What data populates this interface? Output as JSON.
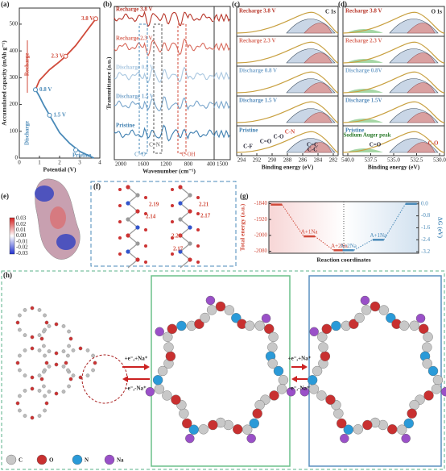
{
  "chart_data": [
    {
      "type": "line",
      "panel": "(a)",
      "xlabel": "Potential (V)",
      "ylabel": "Accumulated capacity (mAh g⁻¹)",
      "xlim": [
        0,
        4
      ],
      "xticks": [
        0,
        1,
        2,
        3,
        4
      ],
      "ylim": [
        0,
        560
      ],
      "yticks": [
        0,
        100,
        200,
        300,
        400,
        500
      ],
      "series": [
        {
          "name": "Discharge",
          "color": "#4a8ab8",
          "x": [
            3.7,
            3.0,
            2.5,
            2.0,
            1.5,
            1.2,
            1.0,
            0.85,
            0.8
          ],
          "values": [
            0,
            25,
            55,
            95,
            160,
            200,
            230,
            250,
            255
          ]
        },
        {
          "name": "Recharge",
          "color": "#d04a3a",
          "x": [
            0.8,
            1.0,
            1.5,
            2.0,
            2.3,
            2.8,
            3.3,
            3.8
          ],
          "values": [
            255,
            290,
            330,
            360,
            380,
            420,
            470,
            520
          ]
        }
      ],
      "points": [
        {
          "label": "3.8 V",
          "x": 3.8,
          "y": 520,
          "color": "#d04a3a"
        },
        {
          "label": "2.3 V",
          "x": 2.3,
          "y": 380,
          "color": "#d04a3a"
        },
        {
          "label": "0.8 V",
          "x": 0.8,
          "y": 255,
          "color": "#4a8ab8"
        },
        {
          "label": "1.5 V",
          "x": 1.5,
          "y": 160,
          "color": "#4a8ab8"
        },
        {
          "label": "Pristine",
          "x": 2.8,
          "y": 30,
          "color": "#4a8ab8"
        }
      ]
    },
    {
      "type": "level",
      "panel": "(g)",
      "xlabel": "Reaction coordinates",
      "ylabel": "Total energy (a.u.)",
      "y2label": "ΔG (eV)",
      "ylim": [
        -2090,
        -1830
      ],
      "yticks": [
        -1840,
        -1920,
        -2000,
        -2080
      ],
      "y2lim": [
        -3.3,
        0.15
      ],
      "y2ticks": [
        {
          "value": 0,
          "label": "0.0"
        },
        -0.8,
        -1.6,
        -2.4,
        -3.2
      ],
      "series": [
        {
          "color": "#d04a3a",
          "labels": [
            null,
            "A+1Na",
            "A+2Na"
          ],
          "values": [
            -1845,
            -2005,
            -2075
          ]
        },
        {
          "color": "#4a8ab8",
          "axis": "y2",
          "labels": [
            "A+2Na",
            "A+1Na",
            null
          ],
          "values": [
            -3.1,
            -2.4,
            0.0
          ]
        }
      ]
    }
  ],
  "panels": {
    "b": {
      "label": "(b)",
      "xlabel": "Wavenumber (cm⁻¹)",
      "ylabel": "Transmittance (a.u.)",
      "xticks": [
        "2000",
        "1600",
        "1200",
        "800",
        "400",
        "1500"
      ],
      "traces": [
        "Recharge 3.8 V",
        "Recharge 2.3 V",
        "Discharge 0.8 V",
        "Discharge 1.5 V",
        "Pristine"
      ],
      "bands": [
        "C=O",
        "C=N",
        "C-OH"
      ]
    },
    "c": {
      "label": "(c)",
      "title": "C 1s",
      "xlabel": "Binding energy (eV)",
      "xticks": [
        "294",
        "292",
        "290",
        "288",
        "286",
        "284",
        "282"
      ],
      "traces": [
        "Recharge 3.8 V",
        "Recharge 2.3 V",
        "Discharge 0.8 V",
        "Discharge 1.5 V",
        "Pristine"
      ],
      "peaks": [
        "C-F",
        "C=O",
        "C-O",
        "C-N",
        "C=C",
        "C-C"
      ]
    },
    "d": {
      "label": "(d)",
      "title": "O 1s",
      "xlabel": "Binding energy (eV)",
      "xticks": [
        "540.0",
        "537.5",
        "535.0",
        "532.5",
        "530.0"
      ],
      "traces": [
        "Recharge 3.8 V",
        "Recharge 2.3 V",
        "Discharge 0.8V",
        "Discharge 1.5V",
        "Pristine"
      ],
      "peaks": [
        "Sodium Auger peak",
        "C=O",
        "C-O"
      ]
    },
    "e": {
      "label": "(e)",
      "ticks": [
        "0.03",
        "0.02",
        "0.01",
        "0.00",
        "-0.01",
        "-0.02",
        "-0.03"
      ]
    },
    "f": {
      "label": "(f)",
      "distances": [
        "2.19",
        "2.14",
        "2.21",
        "2.17",
        "2.20",
        "2.17"
      ]
    },
    "h": {
      "label": "(h)",
      "forward": "+e⁻,+Na⁺",
      "backward": "-e⁻,-Na⁺",
      "legend": [
        "C",
        "O",
        "N",
        "Na"
      ]
    }
  }
}
